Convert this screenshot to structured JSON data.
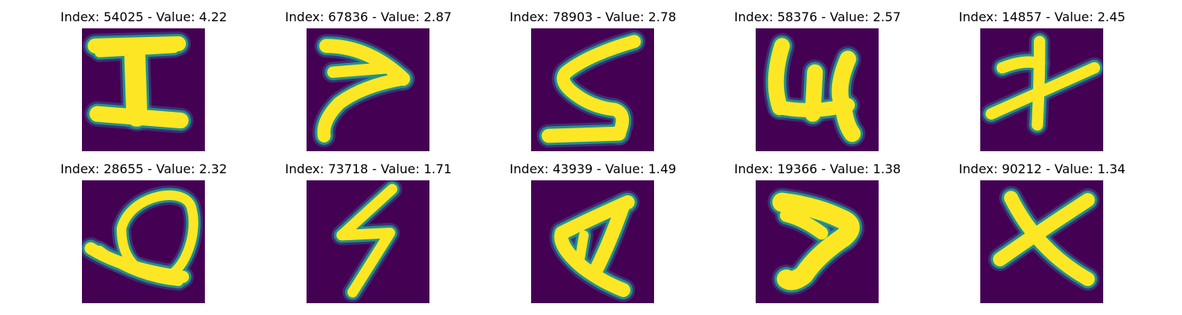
{
  "colors": {
    "background": "#440154",
    "stroke": "#fde725",
    "edge": "#21918c",
    "halo": "#3b528b"
  },
  "grid": {
    "rows": 2,
    "columns": 5,
    "panels": [
      {
        "title": "Index: 54025 - Value: 4.22",
        "index": 54025,
        "value": 4.22,
        "glyph": "I"
      },
      {
        "title": "Index: 67836 - Value: 2.87",
        "index": 67836,
        "value": 2.87,
        "glyph": "hook"
      },
      {
        "title": "Index: 78903 - Value: 2.78",
        "index": 78903,
        "value": 2.78,
        "glyph": "S"
      },
      {
        "title": "Index: 58376 - Value: 2.57",
        "index": 58376,
        "value": 2.57,
        "glyph": "4"
      },
      {
        "title": "Index: 14857 - Value: 2.45",
        "index": 14857,
        "value": 2.45,
        "glyph": "crossed-seven"
      },
      {
        "title": "Index: 28655 - Value: 2.32",
        "index": 28655,
        "value": 2.32,
        "glyph": "loop"
      },
      {
        "title": "Index: 73718 - Value: 1.71",
        "index": 73718,
        "value": 1.71,
        "glyph": "zigzag"
      },
      {
        "title": "Index: 43939 - Value: 1.49",
        "index": 43939,
        "value": 1.49,
        "glyph": "A"
      },
      {
        "title": "Index: 19366 - Value: 1.38",
        "index": 19366,
        "value": 1.38,
        "glyph": "chevron"
      },
      {
        "title": "Index: 90212 - Value: 1.34",
        "index": 90212,
        "value": 1.34,
        "glyph": "X"
      }
    ]
  }
}
